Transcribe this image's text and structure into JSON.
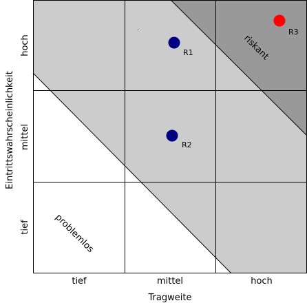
{
  "axes": {
    "x_label": "Tragweite",
    "y_label": "Eintrittswahrscheinlichkeit",
    "x_ticks": [
      "tief",
      "mittel",
      "hoch"
    ],
    "y_ticks": [
      "tief",
      "mittel",
      "hoch"
    ]
  },
  "zones": {
    "safe_label": "problemlos",
    "risky_label": "riskant"
  },
  "risks": [
    {
      "label": "R1",
      "impact": "mittel",
      "likelihood": "hoch",
      "color": "#000080"
    },
    {
      "label": "R2",
      "impact": "mittel",
      "likelihood": "mittel",
      "color": "#000080"
    },
    {
      "label": "R3",
      "impact": "hoch",
      "likelihood": "hoch",
      "color": "#ff0000"
    }
  ],
  "colors": {
    "safe_zone": "#ffffff",
    "middle_zone": "#cccccc",
    "risky_zone": "#999999",
    "grid": "#000000"
  }
}
